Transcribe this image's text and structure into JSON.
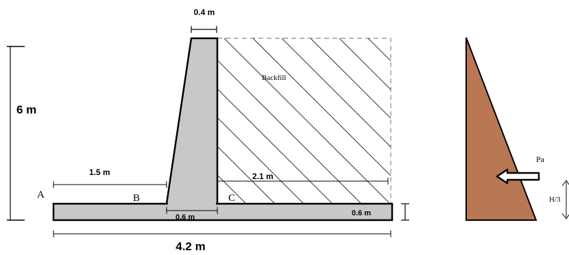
{
  "diagram": {
    "dimensions": {
      "stem_top_width": "0.4 m",
      "wall_height": "6 m",
      "toe_length": "1.5 m",
      "heel_length": "2.1 m",
      "stem_base_width": "0.6 m",
      "base_thickness": "0.6 m",
      "base_width": "4.2 m"
    },
    "points": {
      "a": "A",
      "b": "B",
      "c": "C"
    },
    "backfill_label": "Backfill",
    "pressure": {
      "force_label": "Pa",
      "arm_label": "H/3"
    },
    "colors": {
      "concrete": "#c8c8c8",
      "pressure_fill": "#b97754",
      "line": "#000000"
    }
  }
}
